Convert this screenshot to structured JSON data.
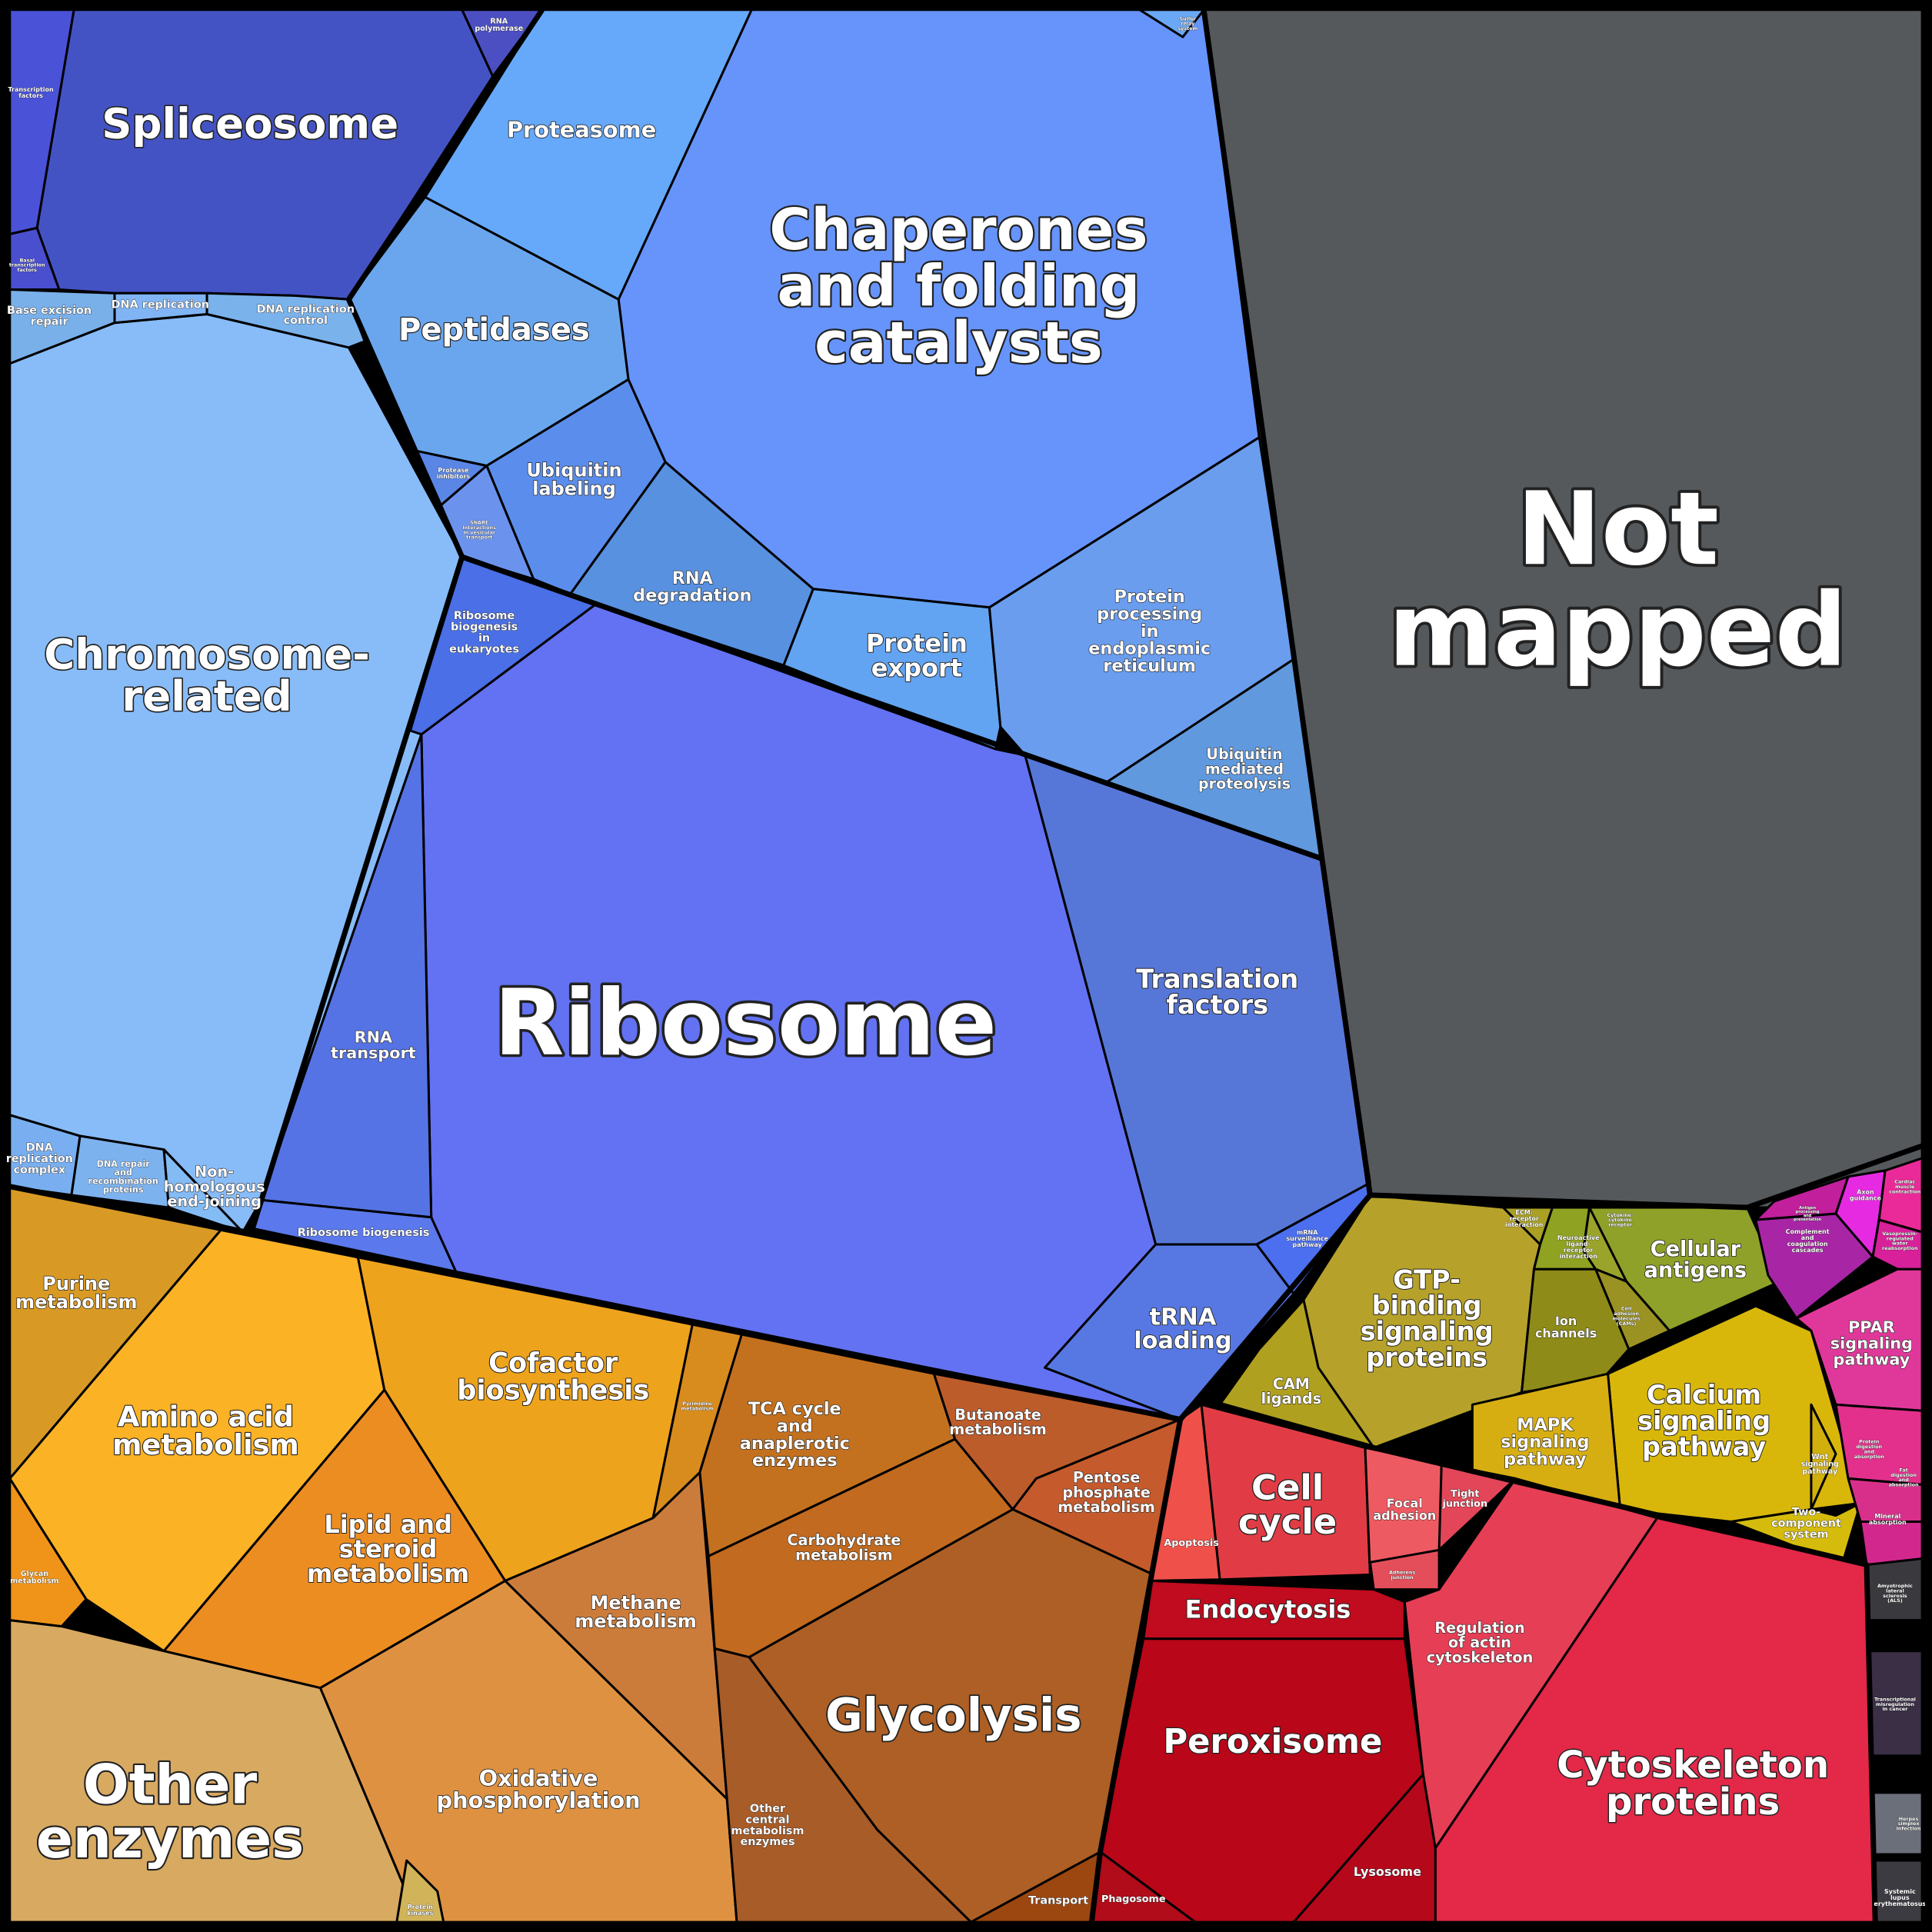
{
  "regions": [
    {
      "id": "not-mapped",
      "lines": [
        "Not",
        "mapped"
      ],
      "color": "#55595c"
    },
    {
      "id": "ribosome",
      "lines": [
        "Ribosome"
      ],
      "color": "#6372f2"
    },
    {
      "id": "chaperones",
      "lines": [
        "Chaperones",
        "and folding",
        "catalysts"
      ],
      "color": "#6694fb"
    },
    {
      "id": "chromosome",
      "lines": [
        "Chromosome-",
        "related"
      ],
      "color": "#88bcf8"
    },
    {
      "id": "spliceosome",
      "lines": [
        "Spliceosome"
      ],
      "color": "#4453c4"
    },
    {
      "id": "proteasome",
      "lines": [
        "Proteasome"
      ],
      "color": "#66a9fb"
    },
    {
      "id": "peptidases",
      "lines": [
        "Peptidases"
      ],
      "color": "#6aa6ee"
    },
    {
      "id": "ubiquitin-labeling",
      "lines": [
        "Ubiquitin",
        "labeling"
      ],
      "color": "#5b8eec"
    },
    {
      "id": "rna-degradation",
      "lines": [
        "RNA",
        "degradation"
      ],
      "color": "#5891e0"
    },
    {
      "id": "protein-export",
      "lines": [
        "Protein",
        "export"
      ],
      "color": "#62a4f1"
    },
    {
      "id": "protein-processing-er",
      "lines": [
        "Protein",
        "processing",
        "in",
        "endoplasmic",
        "reticulum"
      ],
      "color": "#6a9ded"
    },
    {
      "id": "ubiquitin-mediated",
      "lines": [
        "Ubiquitin",
        "mediated",
        "proteolysis"
      ],
      "color": "#6099de"
    },
    {
      "id": "translation-factors",
      "lines": [
        "Translation",
        "factors"
      ],
      "color": "#5777d8"
    },
    {
      "id": "trna-loading",
      "lines": [
        "tRNA",
        "loading"
      ],
      "color": "#5778e2"
    },
    {
      "id": "mrna-surveillance",
      "lines": [
        "mRNA",
        "surveillance",
        "pathway"
      ],
      "color": "#4b6fee"
    },
    {
      "id": "rna-transport",
      "lines": [
        "RNA",
        "transport"
      ],
      "color": "#5573e4"
    },
    {
      "id": "ribosome-biogenesis-euk",
      "lines": [
        "Ribosome",
        "biogenesis",
        "in",
        "eukaryotes"
      ],
      "color": "#4a6fe6"
    },
    {
      "id": "ribosome-biogenesis",
      "lines": [
        "Ribosome biogenesis"
      ],
      "color": "#5b79ec"
    },
    {
      "id": "protease-inhibitors",
      "lines": [
        "Protease",
        "inhibitors"
      ],
      "color": "#5a86e6"
    },
    {
      "id": "snare",
      "lines": [
        "SNARE",
        "interactions",
        "in vesicular",
        "transport"
      ],
      "color": "#6b93ee"
    },
    {
      "id": "transcription-factors",
      "lines": [
        "Transcription",
        "factors"
      ],
      "color": "#4a52d8"
    },
    {
      "id": "basal-transcription",
      "lines": [
        "Basal",
        "transcription",
        "factors"
      ],
      "color": "#4a4fcf"
    },
    {
      "id": "rna-polymerase",
      "lines": [
        "RNA",
        "polymerase"
      ],
      "color": "#4c4fc2"
    },
    {
      "id": "sulfur-relay",
      "lines": [
        "Sulfur",
        "relay",
        "system"
      ],
      "color": "#6aa8f5"
    },
    {
      "id": "base-excision",
      "lines": [
        "Base excision",
        "repair"
      ],
      "color": "#79b0ea"
    },
    {
      "id": "dna-replication",
      "lines": [
        "DNA replication"
      ],
      "color": "#80b4f4"
    },
    {
      "id": "dna-replication-control",
      "lines": [
        "DNA replication",
        "control"
      ],
      "color": "#7ab2ec"
    },
    {
      "id": "dna-replication-complex",
      "lines": [
        "DNA",
        "replication",
        "complex"
      ],
      "color": "#79aff0"
    },
    {
      "id": "dna-repair",
      "lines": [
        "DNA repair",
        "and",
        "recombination",
        "proteins"
      ],
      "color": "#7cb2ee"
    },
    {
      "id": "nhej",
      "lines": [
        "Non-",
        "homologous",
        "end-joining"
      ],
      "color": "#83bbf5"
    },
    {
      "id": "purine",
      "lines": [
        "Purine",
        "metabolism"
      ],
      "color": "#d89a25"
    },
    {
      "id": "amino-acid",
      "lines": [
        "Amino acid",
        "metabolism"
      ],
      "color": "#fbb225"
    },
    {
      "id": "cofactor",
      "lines": [
        "Cofactor",
        "biosynthesis"
      ],
      "color": "#eea31c"
    },
    {
      "id": "pyrimidine",
      "lines": [
        "Pyrimidine",
        "metabolism"
      ],
      "color": "#d88c1d"
    },
    {
      "id": "lipid-steroid",
      "lines": [
        "Lipid and",
        "steroid",
        "metabolism"
      ],
      "color": "#ec8d22"
    },
    {
      "id": "glycan",
      "lines": [
        "Glycan",
        "metabolism"
      ],
      "color": "#f09419"
    },
    {
      "id": "other-enzymes",
      "lines": [
        "Other",
        "enzymes"
      ],
      "color": "#d8a961"
    },
    {
      "id": "oxidative-phos",
      "lines": [
        "Oxidative",
        "phosphorylation"
      ],
      "color": "#de9241"
    },
    {
      "id": "methane",
      "lines": [
        "Methane",
        "metabolism"
      ],
      "color": "#cc7c3a"
    },
    {
      "id": "tca",
      "lines": [
        "TCA cycle",
        "and",
        "anaplerotic",
        "enzymes"
      ],
      "color": "#c4711f"
    },
    {
      "id": "carbohydrate",
      "lines": [
        "Carbohydrate",
        "metabolism"
      ],
      "color": "#c26a1f"
    },
    {
      "id": "butanoate",
      "lines": [
        "Butanoate",
        "metabolism"
      ],
      "color": "#bd5c2b"
    },
    {
      "id": "pentose",
      "lines": [
        "Pentose",
        "phosphate",
        "metabolism"
      ],
      "color": "#c55a2c"
    },
    {
      "id": "glycolysis",
      "lines": [
        "Glycolysis"
      ],
      "color": "#ad5f25"
    },
    {
      "id": "other-central",
      "lines": [
        "Other",
        "central",
        "metabolism",
        "enzymes"
      ],
      "color": "#a85c28"
    },
    {
      "id": "transport",
      "lines": [
        "Transport"
      ],
      "color": "#9c4610"
    },
    {
      "id": "protein-kinases",
      "lines": [
        "Protein",
        "kinases"
      ],
      "color": "#d1b45a"
    },
    {
      "id": "gtp-binding",
      "lines": [
        "GTP-",
        "binding",
        "signaling",
        "proteins"
      ],
      "color": "#b6a22a"
    },
    {
      "id": "cellular-antigens",
      "lines": [
        "Cellular",
        "antigens"
      ],
      "color": "#8fa128"
    },
    {
      "id": "ion-channels",
      "lines": [
        "Ion",
        "channels"
      ],
      "color": "#8e8b19"
    },
    {
      "id": "cam-ligands",
      "lines": [
        "CAM",
        "ligands"
      ],
      "color": "#b0a01f"
    },
    {
      "id": "ecm-receptor",
      "lines": [
        "ECM-",
        "receptor",
        "interaction"
      ],
      "color": "#a9a024"
    },
    {
      "id": "neuroactive",
      "lines": [
        "Neuroactive",
        "ligand-",
        "receptor",
        "interaction"
      ],
      "color": "#8fa221"
    },
    {
      "id": "cytokine",
      "lines": [
        "Cytokine-",
        "cytokine",
        "receptor"
      ],
      "color": "#9aa42a"
    },
    {
      "id": "cell-adhesion",
      "lines": [
        "Cell",
        "adhesion",
        "molecules",
        "(CAMs)"
      ],
      "color": "#9b9224"
    },
    {
      "id": "calcium",
      "lines": [
        "Calcium",
        "signaling",
        "pathway"
      ],
      "color": "#d8b70a"
    },
    {
      "id": "mapk",
      "lines": [
        "MAPK",
        "signaling",
        "pathway"
      ],
      "color": "#d7ae12"
    },
    {
      "id": "wnt",
      "lines": [
        "Wnt",
        "signaling",
        "pathway"
      ],
      "color": "#d1b00e"
    },
    {
      "id": "two-component",
      "lines": [
        "Two-",
        "component",
        "system"
      ],
      "color": "#d5bc0c"
    },
    {
      "id": "cell-cycle",
      "lines": [
        "Cell",
        "cycle"
      ],
      "color": "#e13c45"
    },
    {
      "id": "apoptosis",
      "lines": [
        "Apoptosis"
      ],
      "color": "#f0504a"
    },
    {
      "id": "focal-adhesion",
      "lines": [
        "Focal",
        "adhesion"
      ],
      "color": "#ee5a62"
    },
    {
      "id": "tight-junction",
      "lines": [
        "Tight",
        "junction"
      ],
      "color": "#e24658"
    },
    {
      "id": "adherens",
      "lines": [
        "Adherens",
        "junction"
      ],
      "color": "#e44e5a"
    },
    {
      "id": "endocytosis",
      "lines": [
        "Endocytosis"
      ],
      "color": "#c10b1e"
    },
    {
      "id": "regulation-actin",
      "lines": [
        "Regulation",
        "of actin",
        "cytoskeleton"
      ],
      "color": "#e63e55"
    },
    {
      "id": "cytoskeleton",
      "lines": [
        "Cytoskeleton",
        "proteins"
      ],
      "color": "#e32848"
    },
    {
      "id": "peroxisome",
      "lines": [
        "Peroxisome"
      ],
      "color": "#b90618"
    },
    {
      "id": "lysosome",
      "lines": [
        "Lysosome"
      ],
      "color": "#b5081b"
    },
    {
      "id": "phagosome",
      "lines": [
        "Phagosome"
      ],
      "color": "#b00c19"
    },
    {
      "id": "ppar",
      "lines": [
        "PPAR",
        "signaling",
        "pathway"
      ],
      "color": "#e0389a"
    },
    {
      "id": "complement",
      "lines": [
        "Complement",
        "and",
        "coagulation",
        "cascades"
      ],
      "color": "#a826a6"
    },
    {
      "id": "axon-guidance",
      "lines": [
        "Axon",
        "guidance"
      ],
      "color": "#e62ae2"
    },
    {
      "id": "cardiac",
      "lines": [
        "Cardiac",
        "muscle",
        "contraction"
      ],
      "color": "#ea2a98"
    },
    {
      "id": "vasopressin",
      "lines": [
        "Vasopressin-",
        "regulated",
        "water",
        "reabsorption"
      ],
      "color": "#d8209a"
    },
    {
      "id": "antigen-processing",
      "lines": [
        "Antigen",
        "processing",
        "and",
        "presentation"
      ],
      "color": "#c11f9c"
    },
    {
      "id": "protein-digestion",
      "lines": [
        "Protein",
        "digestion",
        "and",
        "absorption"
      ],
      "color": "#e2308c"
    },
    {
      "id": "fat-digestion",
      "lines": [
        "Fat",
        "digestion",
        "and",
        "absorption"
      ],
      "color": "#d8308a"
    },
    {
      "id": "mineral",
      "lines": [
        "Mineral",
        "absorption"
      ],
      "color": "#d2288e"
    },
    {
      "id": "als",
      "lines": [
        "Amyotrophic",
        "lateral",
        "sclerosis",
        "(ALS)"
      ],
      "color": "#3a3a3e"
    },
    {
      "id": "transcriptional-misreg",
      "lines": [
        "Transcriptional",
        "misregulation",
        "in cancer"
      ],
      "color": "#3b2f46"
    },
    {
      "id": "herpes",
      "lines": [
        "Herpes",
        "simplex",
        "infection"
      ],
      "color": "#6a6f7a"
    },
    {
      "id": "lupus",
      "lines": [
        "Systemic",
        "lupus",
        "erythematosus"
      ],
      "color": "#3c3b42"
    }
  ]
}
